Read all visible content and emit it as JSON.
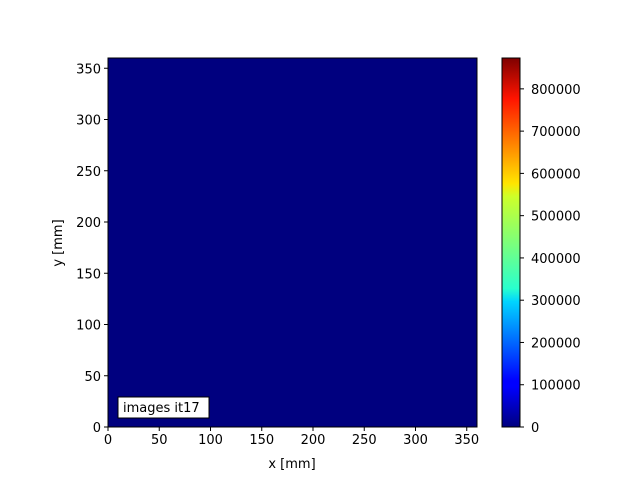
{
  "chart_data": {
    "type": "heatmap",
    "colormap": "jet",
    "xlabel": "x [mm]",
    "ylabel": "y [mm]",
    "xlim": [
      0,
      360
    ],
    "ylim": [
      0,
      360
    ],
    "xticks": [
      0,
      50,
      100,
      150,
      200,
      250,
      300,
      350
    ],
    "yticks": [
      0,
      50,
      100,
      150,
      200,
      250,
      300,
      350
    ],
    "grid": false,
    "field_value": 0,
    "field_color": "#00007f",
    "annotation": "images it17",
    "colorbar": {
      "range": [
        0,
        873000
      ],
      "ticks": [
        0,
        100000,
        200000,
        300000,
        400000,
        500000,
        600000,
        700000,
        800000
      ],
      "tick_labels": [
        "0",
        "100000",
        "200000",
        "300000",
        "400000",
        "500000",
        "600000",
        "700000",
        "800000"
      ]
    }
  }
}
